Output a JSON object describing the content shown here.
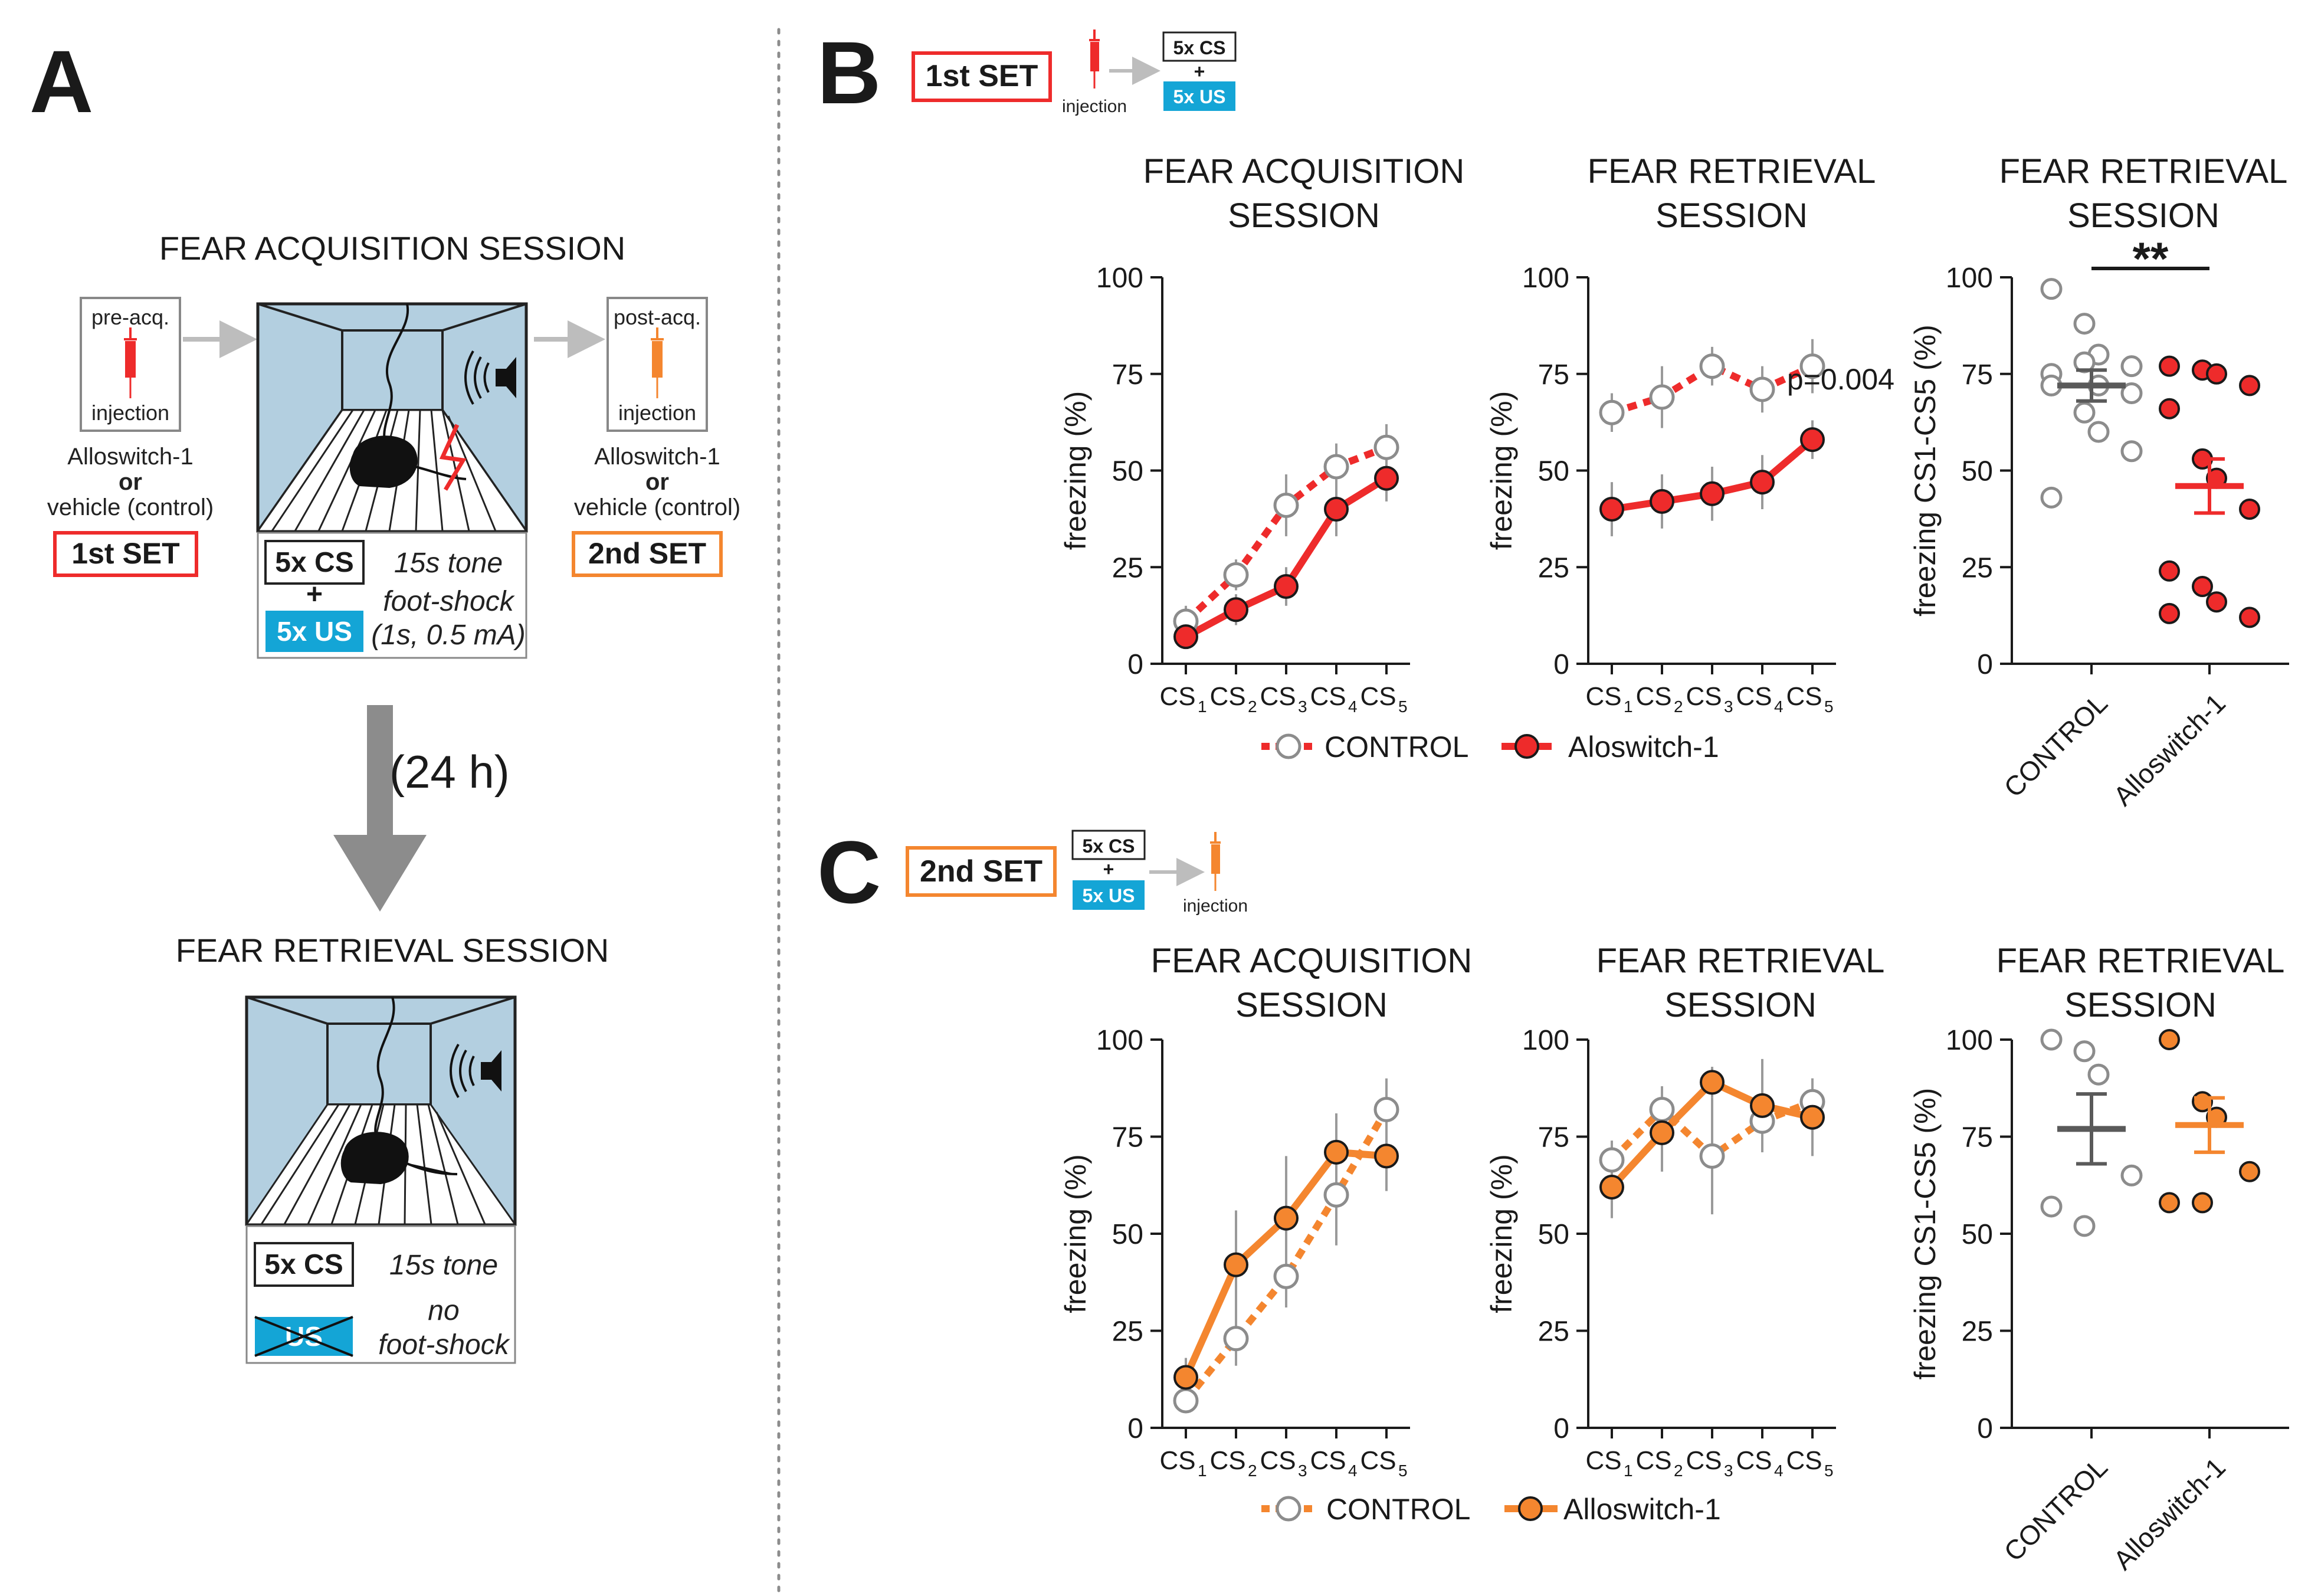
{
  "colors": {
    "red": "#ee2b2b",
    "orange": "#f4862f",
    "blue_cage": "#b3cfe0",
    "cyan_us": "#14a5d6",
    "grey": "#8c8c8c",
    "dark_grey": "#5a5a5a",
    "black": "#1a1a1a"
  },
  "panelA": {
    "letter": "A",
    "acq_title": "FEAR ACQUISITION SESSION",
    "pre_label": "pre-acq.",
    "post_label": "post-acq.",
    "injection": "injection",
    "drug_left": "Alloswitch-1",
    "or_left": "or",
    "vehicle_left": "vehicle (control)",
    "drug_right": "Alloswitch-1",
    "or_right": "or",
    "vehicle_right": "vehicle (control)",
    "set1": "1st SET",
    "set2": "2nd SET",
    "cs": "5x CS",
    "plus": "+",
    "us": "5x US",
    "tone": "15s tone",
    "shock1": "foot-shock",
    "shock2": "(1s, 0.5 mA)",
    "delay": "(24 h)",
    "ret_title": "FEAR RETRIEVAL SESSION",
    "cs_ret": "5x CS",
    "tone_ret": "15s tone",
    "us_crossed": "US",
    "no1": "no",
    "no2": "foot-shock"
  },
  "panelB": {
    "letter": "B",
    "set": "1st SET",
    "injection": "injection",
    "cs": "5x CS",
    "plus": "+",
    "us": "5x US",
    "legend_control": "CONTROL",
    "legend_drug": "Aloswitch-1"
  },
  "panelC": {
    "letter": "C",
    "set": "2nd SET",
    "injection": "injection",
    "cs": "5x CS",
    "plus": "+",
    "us": "5x US",
    "legend_control": "CONTROL",
    "legend_drug": "Alloswitch-1"
  },
  "chart_data": [
    {
      "id": "B-acq",
      "type": "line",
      "title": [
        "FEAR ACQUISITION",
        "SESSION"
      ],
      "ylabel": "freezing (%)",
      "ylim": [
        0,
        100
      ],
      "yticks": [
        "0",
        "25",
        "50",
        "75",
        "100"
      ],
      "categories": [
        "CS1",
        "CS2",
        "CS3",
        "CS4",
        "CS5"
      ],
      "tick_main": "CS",
      "tick_subs": [
        "1",
        "2",
        "3",
        "4",
        "5"
      ],
      "series": [
        {
          "name": "CONTROL",
          "style": "dotted",
          "values": [
            11,
            23,
            41,
            51,
            56
          ],
          "err": [
            4,
            4,
            8,
            6,
            6
          ]
        },
        {
          "name": "Aloswitch-1",
          "style": "solid",
          "values": [
            7,
            14,
            20,
            40,
            48
          ],
          "err": [
            3,
            4,
            5,
            7,
            6
          ]
        }
      ],
      "color": "red"
    },
    {
      "id": "B-ret",
      "type": "line",
      "title": [
        "FEAR RETRIEVAL",
        "SESSION"
      ],
      "ylabel": "freezing (%)",
      "ylim": [
        0,
        100
      ],
      "yticks": [
        "0",
        "25",
        "50",
        "75",
        "100"
      ],
      "categories": [
        "CS1",
        "CS2",
        "CS3",
        "CS4",
        "CS5"
      ],
      "tick_main": "CS",
      "tick_subs": [
        "1",
        "2",
        "3",
        "4",
        "5"
      ],
      "series": [
        {
          "name": "CONTROL",
          "style": "dotted",
          "values": [
            65,
            69,
            77,
            71,
            77
          ],
          "err": [
            5,
            8,
            5,
            6,
            7
          ]
        },
        {
          "name": "Aloswitch-1",
          "style": "solid",
          "values": [
            40,
            42,
            44,
            47,
            58
          ],
          "err": [
            7,
            7,
            7,
            7,
            5
          ]
        }
      ],
      "annotation": "p=0.004",
      "color": "red"
    },
    {
      "id": "B-scatter",
      "type": "scatter",
      "title": [
        "FEAR RETRIEVAL",
        "SESSION"
      ],
      "ylabel": "freezing  CS1-CS5 (%)",
      "ylim": [
        0,
        100
      ],
      "yticks": [
        "0",
        "25",
        "50",
        "75",
        "100"
      ],
      "categories": [
        "CONTROL",
        "Alloswitch-1"
      ],
      "groups": [
        {
          "name": "CONTROL",
          "mean": 72,
          "sem": 4,
          "points": [
            97,
            88,
            80,
            77,
            75,
            78,
            72,
            70,
            72,
            65,
            60,
            55,
            43
          ]
        },
        {
          "name": "Alloswitch-1",
          "mean": 46,
          "sem": 7,
          "points": [
            77,
            76,
            75,
            72,
            66,
            53,
            48,
            40,
            24,
            20,
            16,
            12,
            13
          ]
        }
      ],
      "significance": "**",
      "color": "red"
    },
    {
      "id": "C-acq",
      "type": "line",
      "title": [
        "FEAR ACQUISITION",
        "SESSION"
      ],
      "ylabel": "freezing (%)",
      "ylim": [
        0,
        100
      ],
      "yticks": [
        "0",
        "25",
        "50",
        "75",
        "100"
      ],
      "categories": [
        "CS1",
        "CS2",
        "CS3",
        "CS4",
        "CS5"
      ],
      "tick_main": "CS",
      "tick_subs": [
        "1",
        "2",
        "3",
        "4",
        "5"
      ],
      "series": [
        {
          "name": "CONTROL",
          "style": "dotted",
          "values": [
            7,
            23,
            39,
            60,
            82
          ],
          "err": [
            3,
            7,
            8,
            13,
            8
          ]
        },
        {
          "name": "Alloswitch-1",
          "style": "solid",
          "values": [
            13,
            42,
            54,
            71,
            70
          ],
          "err": [
            5,
            14,
            16,
            10,
            9
          ]
        }
      ],
      "color": "orange"
    },
    {
      "id": "C-ret",
      "type": "line",
      "title": [
        "FEAR RETRIEVAL",
        "SESSION"
      ],
      "ylabel": "freezing (%)",
      "ylim": [
        0,
        100
      ],
      "yticks": [
        "0",
        "25",
        "50",
        "75",
        "100"
      ],
      "categories": [
        "CS1",
        "CS2",
        "CS3",
        "CS4",
        "CS5"
      ],
      "tick_main": "CS",
      "tick_subs": [
        "1",
        "2",
        "3",
        "4",
        "5"
      ],
      "series": [
        {
          "name": "CONTROL",
          "style": "dotted",
          "values": [
            69,
            82,
            70,
            79,
            84
          ],
          "err": [
            5,
            6,
            15,
            8,
            6
          ]
        },
        {
          "name": "Alloswitch-1",
          "style": "solid",
          "values": [
            62,
            76,
            89,
            83,
            80
          ],
          "err": [
            8,
            10,
            4,
            12,
            10
          ]
        }
      ],
      "color": "orange"
    },
    {
      "id": "C-scatter",
      "type": "scatter",
      "title": [
        "FEAR RETRIEVAL",
        "SESSION"
      ],
      "ylabel": "freezing  CS1-CS5 (%)",
      "ylim": [
        0,
        100
      ],
      "yticks": [
        "0",
        "25",
        "50",
        "75",
        "100"
      ],
      "categories": [
        "CONTROL",
        "Alloswitch-1"
      ],
      "groups": [
        {
          "name": "CONTROL",
          "mean": 77,
          "sem": 9,
          "points": [
            100,
            97,
            91,
            65,
            57,
            52
          ]
        },
        {
          "name": "Alloswitch-1",
          "mean": 78,
          "sem": 7,
          "points": [
            100,
            84,
            80,
            66,
            58,
            58
          ]
        }
      ],
      "color": "orange"
    }
  ]
}
